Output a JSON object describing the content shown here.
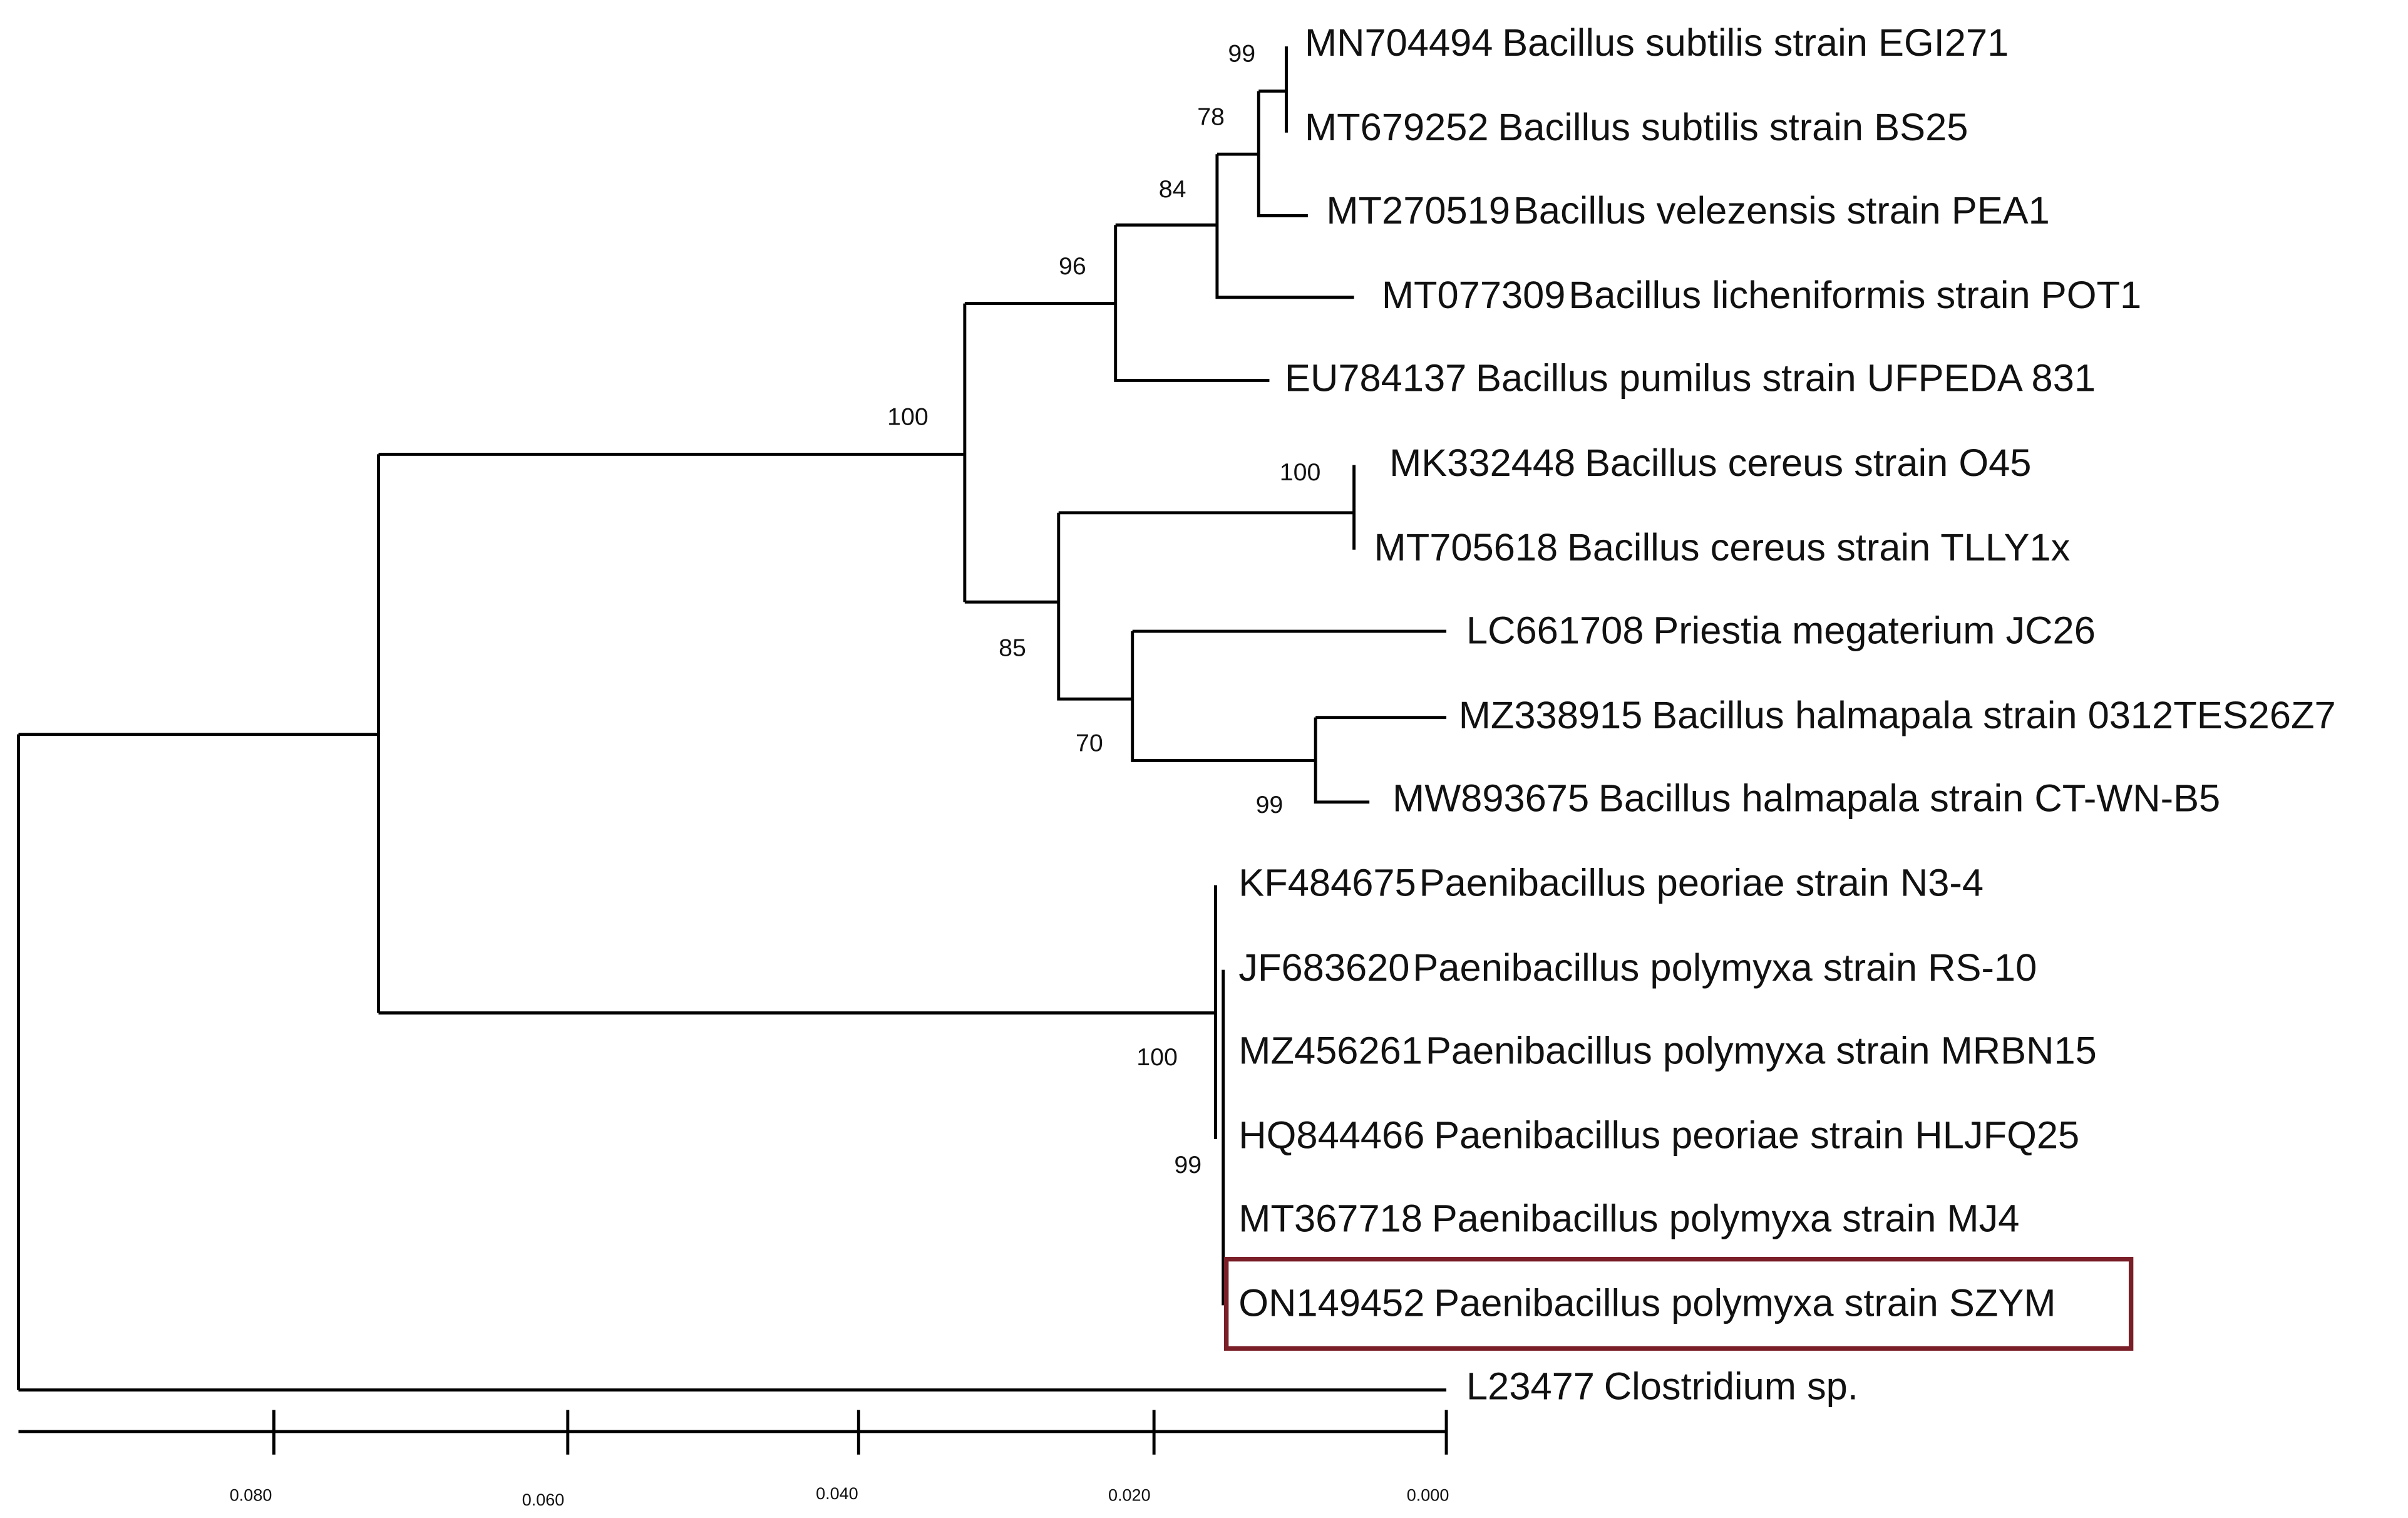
{
  "taxa": [
    {
      "accession": "MN704494",
      "species": "Bacillus subtilis strain EGI271"
    },
    {
      "accession": "MT679252",
      "species": "Bacillus subtilis strain BS25"
    },
    {
      "accession": "MT270519",
      "species": "Bacillus velezensis strain PEA1"
    },
    {
      "accession": "MT077309",
      "species": "Bacillus licheniformis strain POT1"
    },
    {
      "accession": "EU784137",
      "species": "Bacillus pumilus strain UFPEDA 831"
    },
    {
      "accession": "MK332448",
      "species": "Bacillus cereus strain O45"
    },
    {
      "accession": "MT705618",
      "species": "Bacillus cereus strain TLLY1x"
    },
    {
      "accession": "LC661708",
      "species": "Priestia megaterium JC26"
    },
    {
      "accession": "MZ338915",
      "species": "Bacillus halmapala strain 0312TES26Z7"
    },
    {
      "accession": "MW893675",
      "species": "Bacillus halmapala strain CT-WN-B5"
    },
    {
      "accession": "KF484675",
      "species": "Paenibacillus peoriae strain N3-4"
    },
    {
      "accession": "JF683620",
      "species": "Paenibacillus polymyxa strain RS-10"
    },
    {
      "accession": "MZ456261",
      "species": "Paenibacillus polymyxa strain MRBN15"
    },
    {
      "accession": "HQ844466",
      "species": "Paenibacillus peoriae strain HLJFQ25"
    },
    {
      "accession": "MT367718",
      "species": "Paenibacillus polymyxa strain MJ4"
    },
    {
      "accession": "ON149452",
      "species": "Paenibacillus polymyxa strain SZYM"
    },
    {
      "accession": "L23477",
      "species": "Clostridium sp."
    }
  ],
  "bootstrap": [
    99,
    78,
    84,
    96,
    100,
    100,
    85,
    70,
    99,
    100,
    99
  ],
  "scale": {
    "ticks": [
      "0.080",
      "0.060",
      "0.040",
      "0.020",
      "0.000"
    ]
  }
}
